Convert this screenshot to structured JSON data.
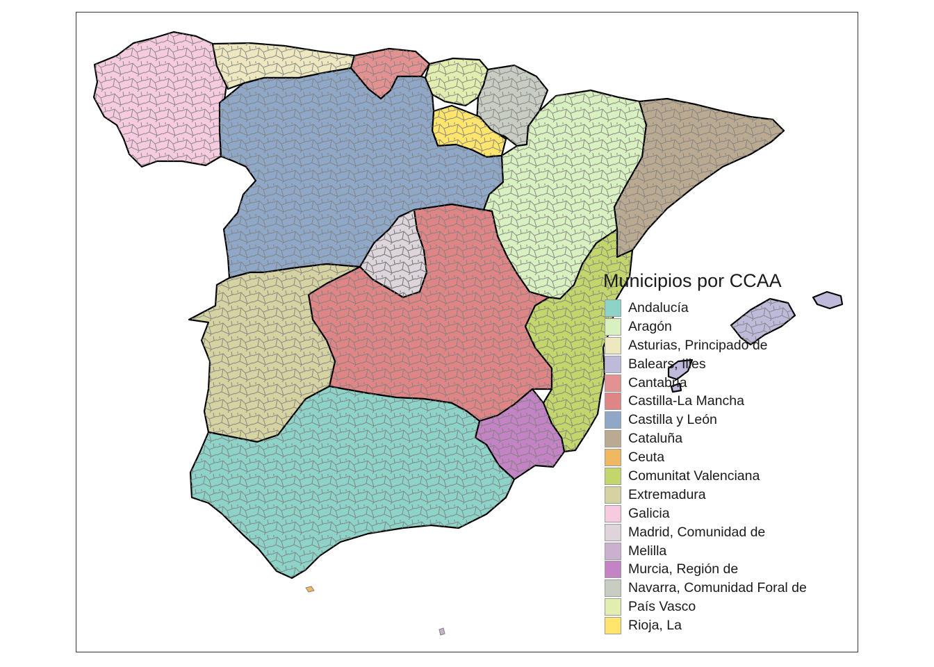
{
  "legend": {
    "title": "Municipios por CCAA",
    "items": [
      {
        "label": "Andalucía",
        "color": "#8DD3C7"
      },
      {
        "label": "Aragón",
        "color": "#D9F0C0"
      },
      {
        "label": "Asturias, Principado de",
        "color": "#EDE8C0"
      },
      {
        "label": "Balears, Illes",
        "color": "#BEBADA"
      },
      {
        "label": "Cantabria",
        "color": "#E49191"
      },
      {
        "label": "Castilla-La Mancha",
        "color": "#E08585"
      },
      {
        "label": "Castilla y León",
        "color": "#8FA8C8"
      },
      {
        "label": "Cataluña",
        "color": "#BAAA91"
      },
      {
        "label": "Ceuta",
        "color": "#F0B860"
      },
      {
        "label": "Comunitat Valenciana",
        "color": "#C3D66B"
      },
      {
        "label": "Extremadura",
        "color": "#D6D3A3"
      },
      {
        "label": "Galicia",
        "color": "#F7CBDF"
      },
      {
        "label": "Madrid, Comunidad de",
        "color": "#DDD4DC"
      },
      {
        "label": "Melilla",
        "color": "#CCB0CF"
      },
      {
        "label": "Murcia, Región de",
        "color": "#C383C4"
      },
      {
        "label": "Navarra, Comunidad Foral de",
        "color": "#C8CDC2"
      },
      {
        "label": "País Vasco",
        "color": "#E2EEB0"
      },
      {
        "label": "Rioja, La",
        "color": "#FFE56B"
      }
    ]
  }
}
